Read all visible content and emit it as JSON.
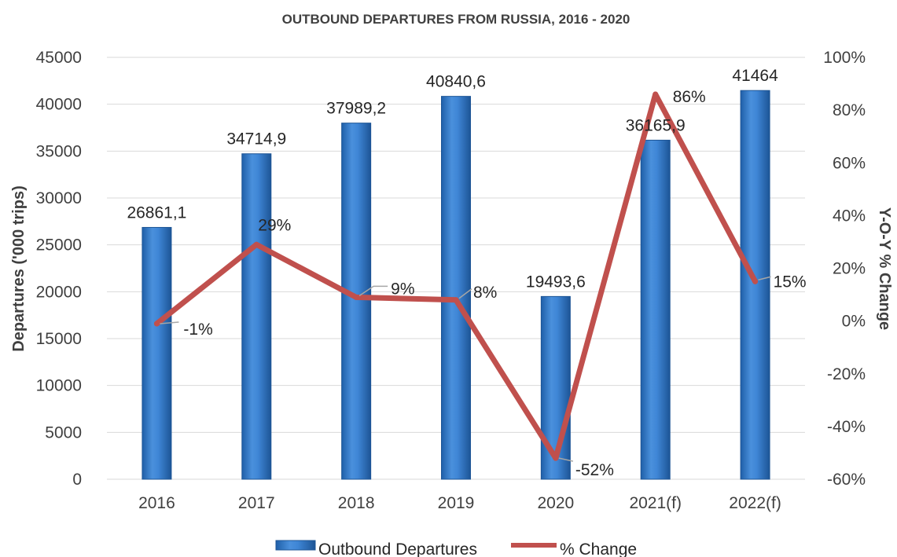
{
  "chart_data": {
    "type": "bar",
    "title": "OUTBOUND DEPARTURES FROM RUSSIA, 2016 - 2020",
    "categories": [
      "2016",
      "2017",
      "2018",
      "2019",
      "2020",
      "2021(f)",
      "2022(f)"
    ],
    "series": [
      {
        "name": "Outbound Departures",
        "type": "bar",
        "axis": "left",
        "values": [
          26861.1,
          34714.9,
          37989.2,
          40840.6,
          19493.6,
          36165.9,
          41464
        ],
        "labels": [
          "26861,1",
          "34714,9",
          "37989,2",
          "40840,6",
          "19493,6",
          "36165,9",
          "41464"
        ],
        "color": "#2e75c8"
      },
      {
        "name": "% Change",
        "type": "line",
        "axis": "right",
        "values": [
          -1,
          29,
          9,
          8,
          -52,
          86,
          15
        ],
        "labels": [
          "-1%",
          "29%",
          "9%",
          "8%",
          "-52%",
          "86%",
          "15%"
        ],
        "color": "#c0504d"
      }
    ],
    "ylabel": "Departures ('000 trips)",
    "y2label": "Y-O-Y % Change",
    "ylim": [
      0,
      45000
    ],
    "yticks": [
      "0",
      "5000",
      "10000",
      "15000",
      "20000",
      "25000",
      "30000",
      "35000",
      "40000",
      "45000"
    ],
    "y2lim": [
      -60,
      100
    ],
    "y2ticks": [
      "-60%",
      "-40%",
      "-20%",
      "0%",
      "20%",
      "40%",
      "60%",
      "80%",
      "100%"
    ],
    "grid": true,
    "legend_position": "bottom"
  }
}
